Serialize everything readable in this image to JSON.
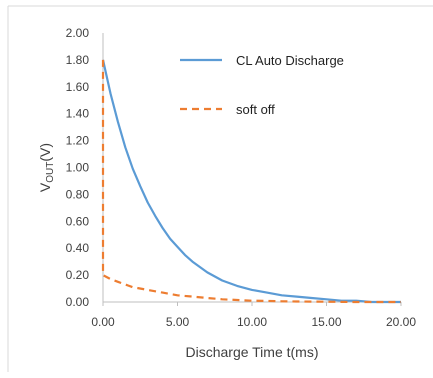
{
  "chart_data": {
    "type": "line",
    "title": "",
    "xlabel": "Discharge Time t(ms)",
    "ylabel": "V",
    "ylabel_sub": "OUT",
    "ylabel_suffix": "(V)",
    "xlim": [
      0,
      20
    ],
    "ylim": [
      0,
      2
    ],
    "x_ticks": [
      "0.00",
      "5.00",
      "10.00",
      "15.00",
      "20.00"
    ],
    "y_ticks": [
      "0.00",
      "0.20",
      "0.40",
      "0.60",
      "0.80",
      "1.00",
      "1.20",
      "1.40",
      "1.60",
      "1.80",
      "2.00"
    ],
    "grid": false,
    "legend_position": "top-right",
    "series": [
      {
        "name": "CL Auto Discharge",
        "color": "#5b9bd5",
        "style": "solid",
        "x": [
          0,
          0.5,
          1,
          1.5,
          2,
          2.5,
          3,
          3.5,
          4,
          4.5,
          5,
          5.5,
          6,
          7,
          8,
          9,
          10,
          11,
          12,
          13,
          14,
          15,
          16,
          17,
          18,
          19,
          20
        ],
        "y": [
          1.8,
          1.55,
          1.34,
          1.15,
          0.99,
          0.86,
          0.74,
          0.64,
          0.55,
          0.47,
          0.41,
          0.35,
          0.3,
          0.22,
          0.16,
          0.12,
          0.09,
          0.07,
          0.05,
          0.04,
          0.03,
          0.02,
          0.01,
          0.01,
          0.0,
          0.0,
          0.0
        ]
      },
      {
        "name": "soft off",
        "color": "#ed7d31",
        "style": "dashed",
        "x": [
          0,
          0,
          0.5,
          1,
          1.5,
          2,
          3,
          4,
          5,
          6,
          7,
          8,
          9,
          10,
          11,
          12,
          13,
          14,
          15,
          16,
          17,
          18,
          19,
          20
        ],
        "y": [
          1.8,
          0.2,
          0.17,
          0.15,
          0.13,
          0.11,
          0.09,
          0.07,
          0.05,
          0.04,
          0.03,
          0.02,
          0.015,
          0.01,
          0.008,
          0.005,
          0.004,
          0.003,
          0.002,
          0.001,
          0.0,
          0.0,
          0.0,
          0.0
        ]
      }
    ]
  }
}
